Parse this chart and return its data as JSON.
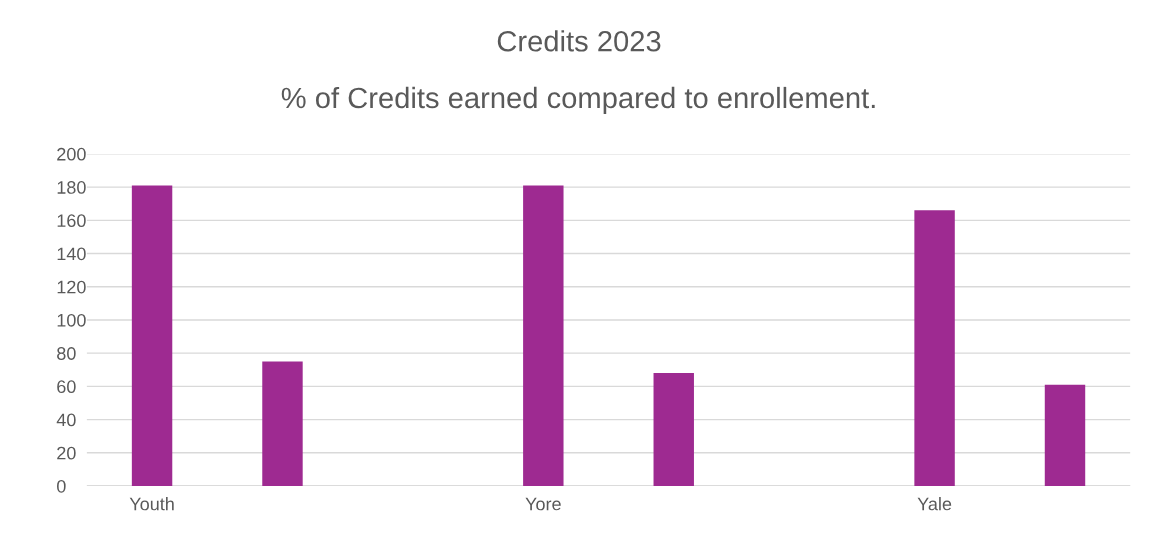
{
  "chart_data": {
    "type": "bar",
    "title": "Credits 2023",
    "subtitle": "% of Credits earned compared to enrollement.",
    "categories": [
      "Youth",
      null,
      null,
      "Yore",
      null,
      null,
      "Yale",
      null
    ],
    "values": [
      181,
      75,
      null,
      181,
      68,
      null,
      166,
      61
    ],
    "color": "#9e2a91",
    "ylim": [
      0,
      200
    ],
    "yticks": [
      0,
      20,
      40,
      60,
      80,
      100,
      120,
      140,
      160,
      180,
      200
    ],
    "grid": "y",
    "legend": false
  }
}
